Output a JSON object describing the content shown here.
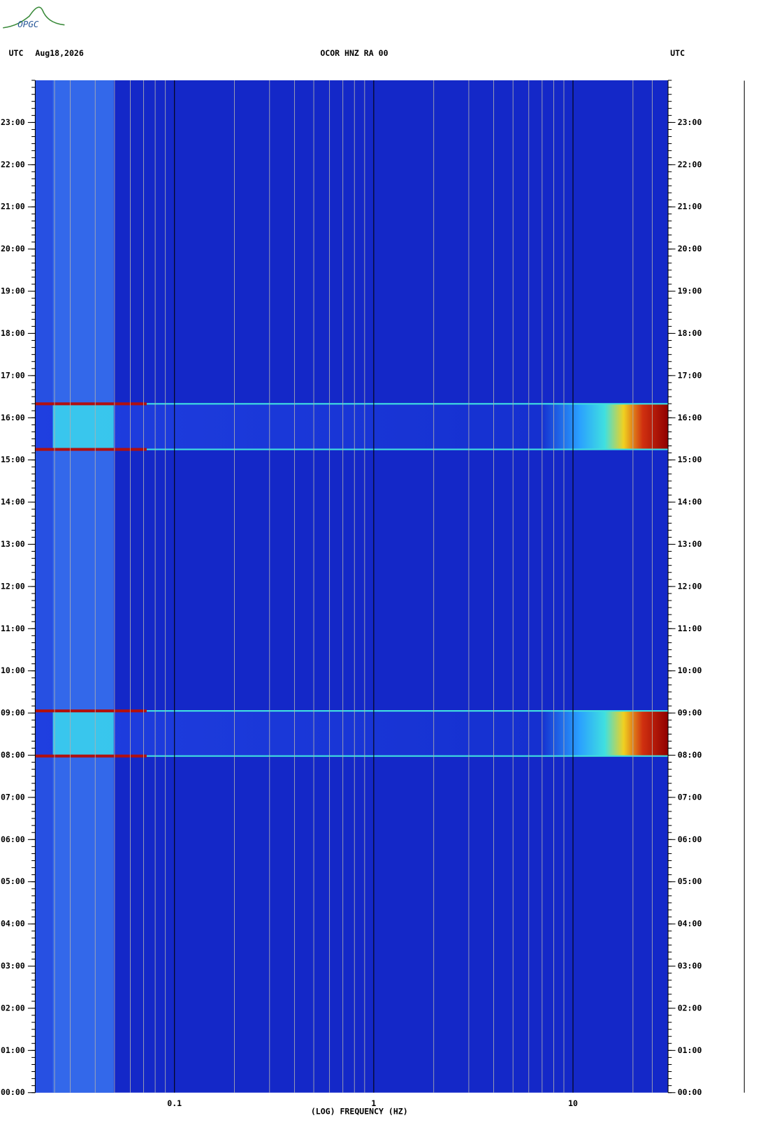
{
  "chart_data": {
    "type": "spectrogram",
    "logo": "OPGC",
    "left_header": "UTC",
    "date": "Aug18,2026",
    "title": "OCOR HNZ RA 00",
    "right_header": "UTC",
    "xlabel": "(LOG) FREQUENCY (HZ)",
    "xscale": "log",
    "xlim": [
      0.02,
      30
    ],
    "xticks": [
      0.1,
      1,
      10
    ],
    "xminor": [
      0.025,
      0.03,
      0.04,
      0.05,
      0.06,
      0.07,
      0.08,
      0.09,
      0.2,
      0.3,
      0.4,
      0.5,
      0.6,
      0.7,
      0.8,
      0.9,
      2,
      3,
      4,
      5,
      6,
      7,
      8,
      9,
      20,
      25
    ],
    "ylim": [
      0,
      24
    ],
    "yticks": [
      {
        "value": 0,
        "label": "00:00"
      },
      {
        "value": 1,
        "label": "01:00"
      },
      {
        "value": 2,
        "label": "02:00"
      },
      {
        "value": 3,
        "label": "03:00"
      },
      {
        "value": 4,
        "label": "04:00"
      },
      {
        "value": 5,
        "label": "05:00"
      },
      {
        "value": 6,
        "label": "06:00"
      },
      {
        "value": 7,
        "label": "07:00"
      },
      {
        "value": 8,
        "label": "08:00"
      },
      {
        "value": 9,
        "label": "09:00"
      },
      {
        "value": 10,
        "label": "10:00"
      },
      {
        "value": 11,
        "label": "11:00"
      },
      {
        "value": 12,
        "label": "12:00"
      },
      {
        "value": 13,
        "label": "13:00"
      },
      {
        "value": 14,
        "label": "14:00"
      },
      {
        "value": 15,
        "label": "15:00"
      },
      {
        "value": 16,
        "label": "16:00"
      },
      {
        "value": 17,
        "label": "17:00"
      },
      {
        "value": 18,
        "label": "18:00"
      },
      {
        "value": 19,
        "label": "19:00"
      },
      {
        "value": 20,
        "label": "20:00"
      },
      {
        "value": 21,
        "label": "21:00"
      },
      {
        "value": 22,
        "label": "22:00"
      },
      {
        "value": 23,
        "label": "23:00"
      }
    ],
    "events": [
      {
        "start": 7.98,
        "end": 9.05
      },
      {
        "start": 15.25,
        "end": 16.33
      }
    ]
  }
}
